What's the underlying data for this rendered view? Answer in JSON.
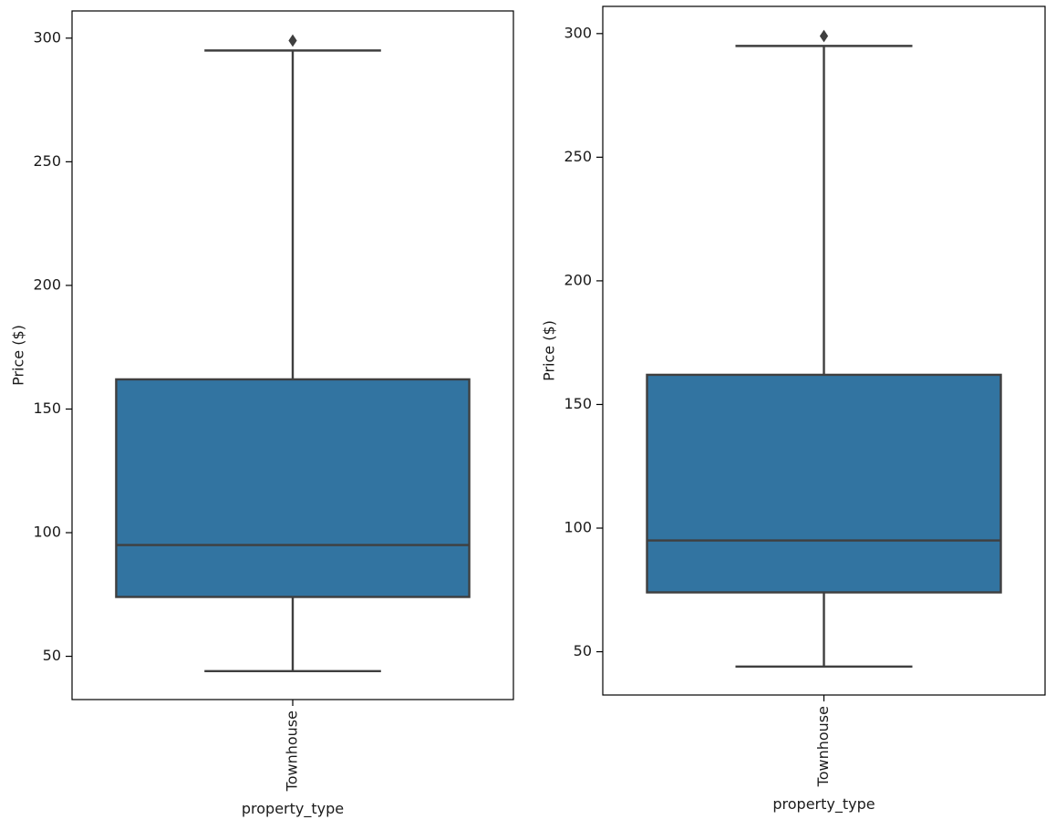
{
  "chart_data": [
    {
      "type": "box",
      "categories": [
        "Townhouse"
      ],
      "xlabel": "property_type",
      "ylabel": "Price ($)",
      "ylim": [
        32.5,
        311
      ],
      "yticks": [
        50,
        100,
        150,
        200,
        250,
        300
      ],
      "grid": false,
      "box": {
        "whisker_low": 44,
        "q1": 74,
        "median": 95,
        "q3": 162,
        "whisker_high": 295,
        "outliers": [
          299
        ]
      },
      "colors": {
        "box_fill": "#3274a1",
        "line": "#3f3f3f"
      }
    },
    {
      "type": "box",
      "categories": [
        "Townhouse"
      ],
      "xlabel": "property_type",
      "ylabel": "Price ($)",
      "ylim": [
        32.5,
        311
      ],
      "yticks": [
        50,
        100,
        150,
        200,
        250,
        300
      ],
      "grid": false,
      "box": {
        "whisker_low": 44,
        "q1": 74,
        "median": 95,
        "q3": 162,
        "whisker_high": 295,
        "outliers": [
          299
        ]
      },
      "colors": {
        "box_fill": "#3274a1",
        "line": "#3f3f3f"
      }
    }
  ]
}
